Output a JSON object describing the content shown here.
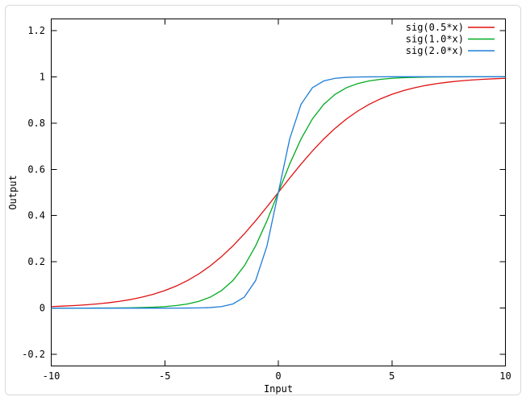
{
  "window": {
    "background": "#ffffff",
    "frame_border_color": "#d9d9d9"
  },
  "chart_data": {
    "type": "line",
    "title": "",
    "xlabel": "Input",
    "ylabel": "Output",
    "xlim": [
      -10,
      10
    ],
    "ylim": [
      -0.25,
      1.25
    ],
    "grid": false,
    "axis_color": "#000000",
    "tick_style": "inward-mirrored",
    "legend_position": "top-right-inside",
    "xticks": {
      "values": [
        -10,
        -5,
        0,
        5,
        10
      ],
      "labels": [
        "-10",
        "-5",
        "0",
        "5",
        "10"
      ]
    },
    "yticks": {
      "values": [
        -0.2,
        0,
        0.2,
        0.4,
        0.6,
        0.8,
        1,
        1.2
      ],
      "labels": [
        "-0.2",
        "0",
        "0.2",
        "0.4",
        "0.6",
        "0.8",
        "1",
        "1.2"
      ]
    },
    "x": [
      -10,
      -9.5,
      -9,
      -8.5,
      -8,
      -7.5,
      -7,
      -6.5,
      -6,
      -5.5,
      -5,
      -4.5,
      -4,
      -3.5,
      -3,
      -2.5,
      -2,
      -1.5,
      -1,
      -0.5,
      0,
      0.5,
      1,
      1.5,
      2,
      2.5,
      3,
      3.5,
      4,
      4.5,
      5,
      5.5,
      6,
      6.5,
      7,
      7.5,
      8,
      8.5,
      9,
      9.5,
      10
    ],
    "series": [
      {
        "name": "sig(0.5*x)",
        "color": "#e01010",
        "values": [
          0.0067,
          0.0086,
          0.011,
          0.0141,
          0.018,
          0.023,
          0.0293,
          0.0373,
          0.0474,
          0.0601,
          0.0759,
          0.0953,
          0.1192,
          0.148,
          0.1824,
          0.2227,
          0.2689,
          0.3208,
          0.3775,
          0.4378,
          0.5,
          0.5622,
          0.6225,
          0.6792,
          0.7311,
          0.7773,
          0.8176,
          0.852,
          0.8808,
          0.9047,
          0.9241,
          0.9399,
          0.9526,
          0.9627,
          0.9707,
          0.977,
          0.982,
          0.9859,
          0.989,
          0.9914,
          0.9933
        ]
      },
      {
        "name": "sig(1.0*x)",
        "color": "#00ab20",
        "values": [
          0,
          0.0001,
          0.0001,
          0.0002,
          0.0003,
          0.0006,
          0.0009,
          0.0015,
          0.0025,
          0.0041,
          0.0067,
          0.011,
          0.018,
          0.0293,
          0.0474,
          0.0759,
          0.1192,
          0.1824,
          0.2689,
          0.3775,
          0.5,
          0.6225,
          0.7311,
          0.8176,
          0.8808,
          0.9241,
          0.9526,
          0.9707,
          0.982,
          0.989,
          0.9933,
          0.9959,
          0.9975,
          0.9985,
          0.9991,
          0.9995,
          0.9997,
          0.9998,
          0.9999,
          0.9999,
          1
        ]
      },
      {
        "name": "sig(2.0*x)",
        "color": "#1e7dd7",
        "values": [
          0,
          0,
          0,
          0,
          0,
          0,
          0,
          0,
          0,
          0,
          0,
          0.0001,
          0.0003,
          0.0009,
          0.0025,
          0.0067,
          0.018,
          0.0474,
          0.1192,
          0.2689,
          0.5,
          0.7311,
          0.8808,
          0.9526,
          0.982,
          0.9933,
          0.9975,
          0.9991,
          0.9997,
          0.9999,
          1,
          1,
          1,
          1,
          1,
          1,
          1,
          1,
          1,
          1,
          1
        ]
      }
    ]
  }
}
